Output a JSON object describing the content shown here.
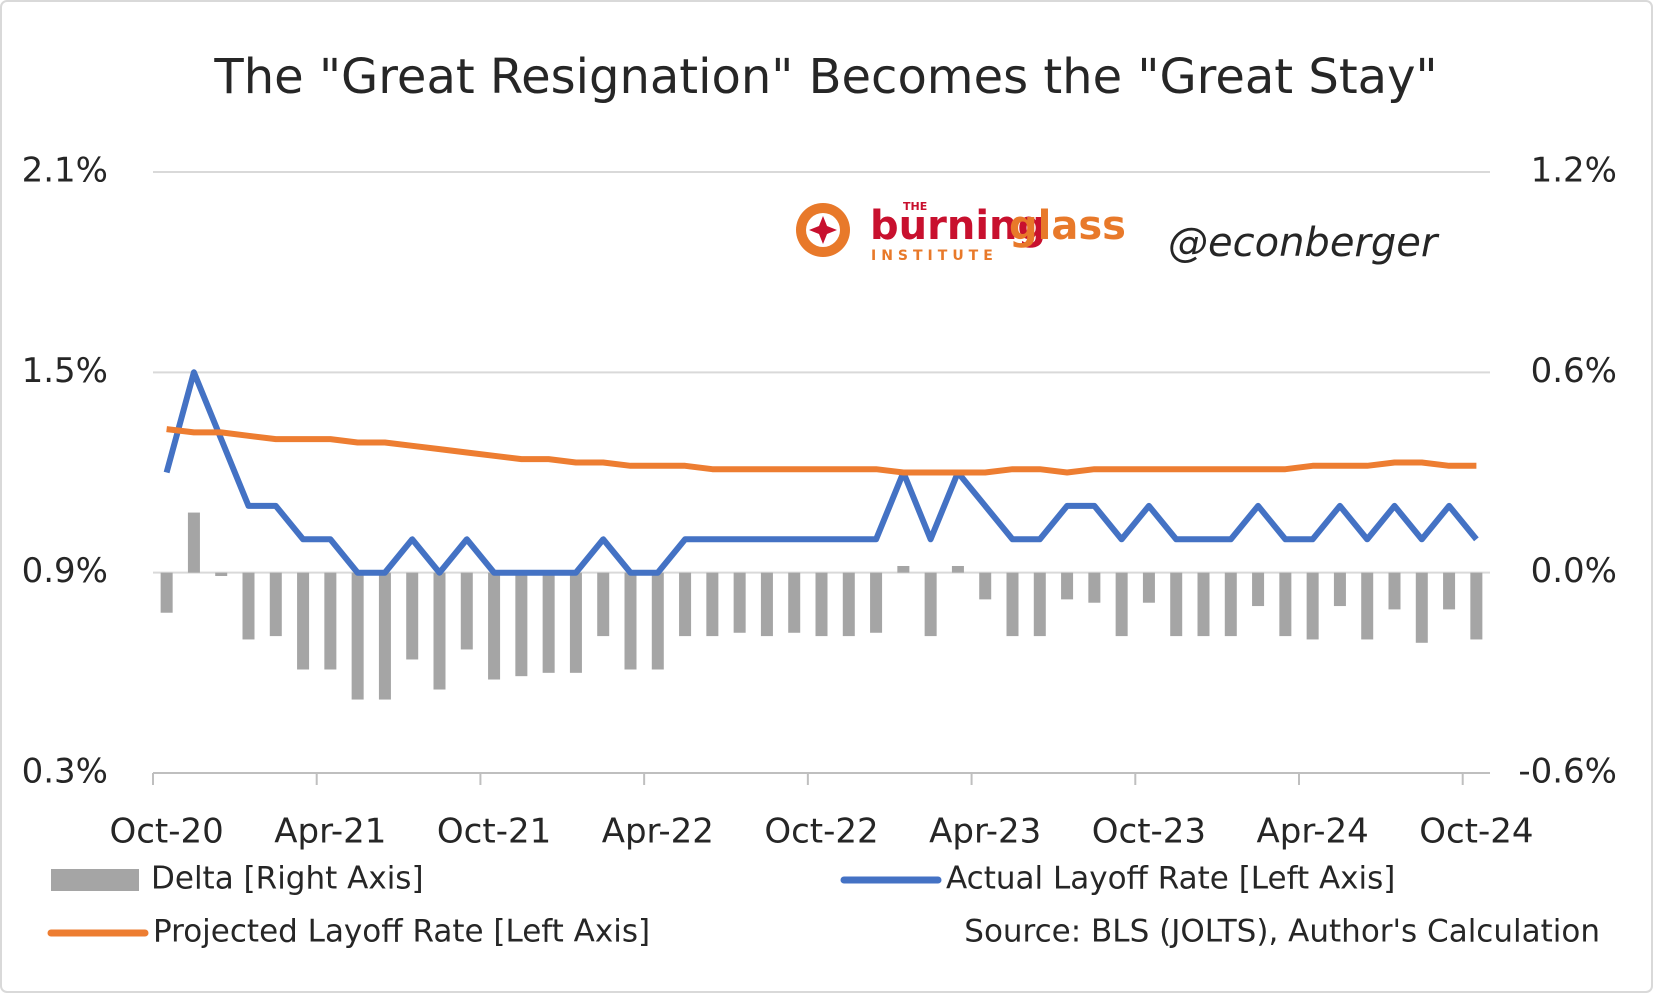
{
  "chart_data": {
    "type": "bar-line-combo",
    "title": "The \"Great Resignation\" Becomes the \"Great Stay\"",
    "logo": {
      "small": "THE",
      "name_a": "burning",
      "name_b": "glass",
      "sub": "INSTITUTE"
    },
    "handle": "@econberger",
    "source": "Source: BLS (JOLTS), Author's Calculation",
    "categories": [
      "Oct-20",
      null,
      null,
      null,
      null,
      null,
      "Apr-21",
      null,
      null,
      null,
      null,
      null,
      "Oct-21",
      null,
      null,
      null,
      null,
      null,
      "Apr-22",
      null,
      null,
      null,
      null,
      null,
      "Oct-22",
      null,
      null,
      null,
      null,
      null,
      "Apr-23",
      null,
      null,
      null,
      null,
      null,
      "Oct-23",
      null,
      null,
      null,
      null,
      null,
      "Apr-24",
      null,
      null,
      null,
      null,
      null,
      "Oct-24"
    ],
    "ylim": [
      0.3,
      2.1
    ],
    "yticks": [
      {
        "value": 0.3,
        "label": "0.3%"
      },
      {
        "value": 0.9,
        "label": "0.9%"
      },
      {
        "value": 1.5,
        "label": "1.5%"
      },
      {
        "value": 2.1,
        "label": "2.1%"
      }
    ],
    "y2lim": [
      -0.6,
      1.2
    ],
    "y2ticks": [
      {
        "value": -0.6,
        "label": "-0.6%"
      },
      {
        "value": 0,
        "label": "0.0%"
      },
      {
        "value": 0.6,
        "label": "0.6%"
      },
      {
        "value": 1.2,
        "label": "1.2%"
      }
    ],
    "grid": true,
    "series": [
      {
        "name": "Delta [Right Axis]",
        "kind": "bar",
        "axis": "y2",
        "color": "#a5a5a5",
        "values": [
          -0.12,
          0.18,
          -0.01,
          -0.2,
          -0.19,
          -0.29,
          -0.29,
          -0.38,
          -0.38,
          -0.26,
          -0.35,
          -0.23,
          -0.32,
          -0.31,
          -0.3,
          -0.3,
          -0.19,
          -0.29,
          -0.29,
          -0.19,
          -0.19,
          -0.18,
          -0.19,
          -0.18,
          -0.19,
          -0.19,
          -0.18,
          0.02,
          -0.19,
          0.02,
          -0.08,
          -0.19,
          -0.19,
          -0.08,
          -0.09,
          -0.19,
          -0.09,
          -0.19,
          -0.19,
          -0.19,
          -0.1,
          -0.19,
          -0.2,
          -0.1,
          -0.2,
          -0.11,
          -0.21,
          -0.11,
          -0.2
        ]
      },
      {
        "name": "Actual Layoff Rate [Left Axis]",
        "kind": "line",
        "color": "#4472c4",
        "values": [
          1.2,
          1.5,
          1.3,
          1.1,
          1.1,
          1.0,
          1.0,
          0.9,
          0.9,
          1.0,
          0.9,
          1.0,
          0.9,
          0.9,
          0.9,
          0.9,
          1.0,
          0.9,
          0.9,
          1.0,
          1.0,
          1.0,
          1.0,
          1.0,
          1.0,
          1.0,
          1.0,
          1.2,
          1.0,
          1.2,
          1.1,
          1.0,
          1.0,
          1.1,
          1.1,
          1.0,
          1.1,
          1.0,
          1.0,
          1.0,
          1.1,
          1.0,
          1.0,
          1.1,
          1.0,
          1.1,
          1.0,
          1.1,
          1.0
        ]
      },
      {
        "name": "Projected Layoff Rate [Left Axis]",
        "kind": "line",
        "color": "#ed7d31",
        "values": [
          1.33,
          1.32,
          1.32,
          1.31,
          1.3,
          1.3,
          1.3,
          1.29,
          1.29,
          1.28,
          1.27,
          1.26,
          1.25,
          1.24,
          1.24,
          1.23,
          1.23,
          1.22,
          1.22,
          1.22,
          1.21,
          1.21,
          1.21,
          1.21,
          1.21,
          1.21,
          1.21,
          1.2,
          1.2,
          1.2,
          1.2,
          1.21,
          1.21,
          1.2,
          1.21,
          1.21,
          1.21,
          1.21,
          1.21,
          1.21,
          1.21,
          1.21,
          1.22,
          1.22,
          1.22,
          1.23,
          1.23,
          1.22,
          1.22
        ]
      }
    ]
  }
}
